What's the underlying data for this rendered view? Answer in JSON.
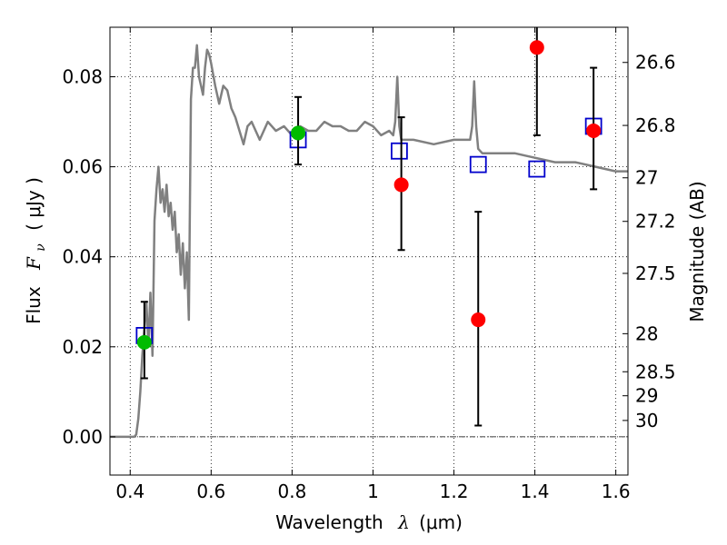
{
  "chart_data": {
    "type": "scatter",
    "xlabel": "Wavelength",
    "xlabel_symbol": "λ",
    "xlabel_unit": "(μm)",
    "ylabel": "Flux",
    "ylabel_symbol": "F",
    "ylabel_subscript": "ν",
    "ylabel_unit": "( μJy )",
    "ylabel_right": "Magnitude (AB)",
    "xlim": [
      0.35,
      1.63
    ],
    "ylim": [
      -0.0085,
      0.091
    ],
    "x_ticks": [
      0.4,
      0.6,
      0.8,
      1.0,
      1.2,
      1.4,
      1.6
    ],
    "x_tick_labels": [
      "0.4",
      "0.6",
      "0.8",
      "1",
      "1.2",
      "1.4",
      "1.6"
    ],
    "y_ticks": [
      0.0,
      0.02,
      0.04,
      0.06,
      0.08
    ],
    "y_tick_labels": [
      "0.00",
      "0.02",
      "0.04",
      "0.06",
      "0.08"
    ],
    "right_ticks": [
      {
        "mag": 26.6,
        "label": "26.6"
      },
      {
        "mag": 26.8,
        "label": "26.8"
      },
      {
        "mag": 27.0,
        "label": "27"
      },
      {
        "mag": 27.2,
        "label": "27.2"
      },
      {
        "mag": 27.5,
        "label": "27.5"
      },
      {
        "mag": 28.0,
        "label": "28"
      },
      {
        "mag": 28.5,
        "label": "28.5"
      },
      {
        "mag": 29.0,
        "label": "29"
      },
      {
        "mag": 30.0,
        "label": "30"
      }
    ],
    "grid": true,
    "zero_line": true,
    "colors": {
      "template": "#808080",
      "model_square": "#0000cc",
      "detection_red": "#ff0000",
      "detection_green": "#00bb00",
      "errorbar": "#000000"
    },
    "template_spectrum": {
      "x": [
        0.35,
        0.38,
        0.41,
        0.415,
        0.42,
        0.425,
        0.43,
        0.435,
        0.44,
        0.445,
        0.45,
        0.455,
        0.46,
        0.465,
        0.47,
        0.475,
        0.48,
        0.485,
        0.49,
        0.495,
        0.5,
        0.505,
        0.51,
        0.515,
        0.52,
        0.525,
        0.53,
        0.535,
        0.54,
        0.545,
        0.55,
        0.555,
        0.56,
        0.565,
        0.57,
        0.575,
        0.58,
        0.585,
        0.59,
        0.595,
        0.6,
        0.61,
        0.62,
        0.63,
        0.64,
        0.65,
        0.66,
        0.67,
        0.68,
        0.69,
        0.7,
        0.72,
        0.74,
        0.76,
        0.78,
        0.8,
        0.82,
        0.84,
        0.86,
        0.88,
        0.9,
        0.92,
        0.94,
        0.96,
        0.98,
        1.0,
        1.02,
        1.04,
        1.05,
        1.055,
        1.06,
        1.065,
        1.07,
        1.1,
        1.15,
        1.2,
        1.24,
        1.245,
        1.25,
        1.255,
        1.26,
        1.27,
        1.3,
        1.35,
        1.4,
        1.45,
        1.5,
        1.55,
        1.6,
        1.63
      ],
      "y": [
        0.0,
        0.0,
        0.0,
        0.0005,
        0.004,
        0.01,
        0.018,
        0.024,
        0.03,
        0.02,
        0.032,
        0.018,
        0.048,
        0.055,
        0.06,
        0.052,
        0.055,
        0.05,
        0.056,
        0.049,
        0.052,
        0.046,
        0.05,
        0.041,
        0.045,
        0.036,
        0.043,
        0.033,
        0.041,
        0.026,
        0.075,
        0.082,
        0.082,
        0.087,
        0.08,
        0.078,
        0.076,
        0.082,
        0.086,
        0.085,
        0.083,
        0.078,
        0.074,
        0.078,
        0.077,
        0.073,
        0.071,
        0.068,
        0.065,
        0.069,
        0.07,
        0.066,
        0.07,
        0.068,
        0.069,
        0.067,
        0.069,
        0.068,
        0.068,
        0.07,
        0.069,
        0.069,
        0.068,
        0.068,
        0.07,
        0.069,
        0.067,
        0.068,
        0.067,
        0.07,
        0.08,
        0.069,
        0.066,
        0.066,
        0.065,
        0.066,
        0.066,
        0.069,
        0.079,
        0.069,
        0.064,
        0.063,
        0.063,
        0.063,
        0.062,
        0.061,
        0.061,
        0.06,
        0.059,
        0.059
      ]
    },
    "model_squares": {
      "x": [
        0.435,
        0.815,
        1.065,
        1.26,
        1.405,
        1.545
      ],
      "y": [
        0.0225,
        0.066,
        0.0635,
        0.0605,
        0.0595,
        0.069
      ]
    },
    "detections_green": {
      "x": [
        0.435,
        0.815
      ],
      "y": [
        0.021,
        0.0675
      ],
      "yerr_low": [
        0.013,
        0.0605
      ],
      "yerr_high": [
        0.03,
        0.0755
      ]
    },
    "detections_red": {
      "x": [
        1.07,
        1.26,
        1.405,
        1.545
      ],
      "y": [
        0.056,
        0.026,
        0.0865,
        0.068
      ],
      "yerr_low": [
        0.0415,
        0.0025,
        0.067,
        0.055
      ],
      "yerr_high": [
        0.071,
        0.05,
        0.091,
        0.082
      ]
    }
  }
}
